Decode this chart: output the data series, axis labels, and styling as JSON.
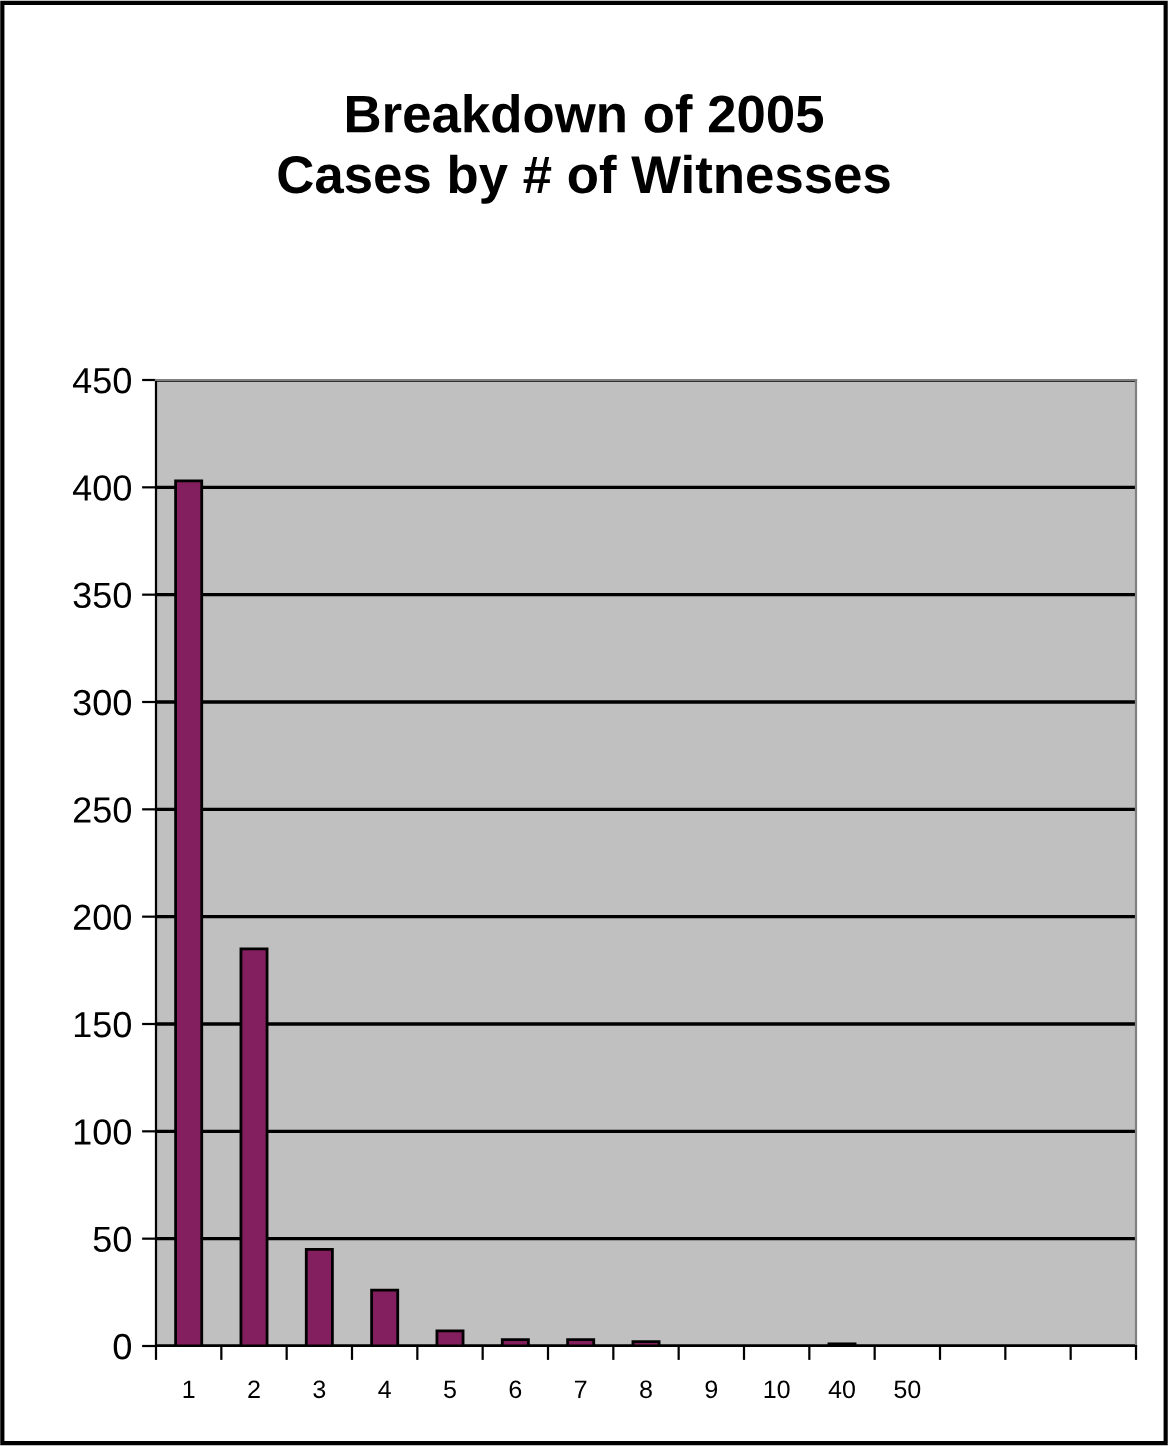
{
  "chart_data": {
    "type": "bar",
    "title": "Breakdown of 2005\nCases by # of Witnesses",
    "categories": [
      "1",
      "2",
      "3",
      "4",
      "5",
      "6",
      "7",
      "8",
      "9",
      "10",
      "40",
      "50",
      null,
      null,
      null
    ],
    "values": [
      403,
      185,
      45,
      26,
      7,
      3,
      3,
      2,
      null,
      null,
      1,
      null,
      null,
      null,
      null
    ],
    "color": "#841f5f",
    "ylim": [
      0,
      450
    ],
    "yticks": [
      0,
      50,
      100,
      150,
      200,
      250,
      300,
      350,
      400,
      450
    ],
    "grid": "y",
    "legend": false
  }
}
